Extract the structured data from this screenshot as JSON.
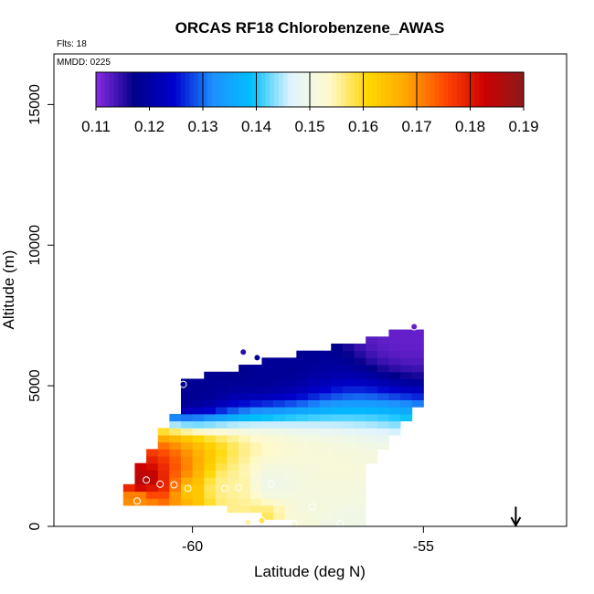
{
  "chart_data": {
    "type": "heatmap",
    "title": "ORCAS RF18 Chlorobenzene_AWAS",
    "annotations": {
      "flights": "Flts: 18",
      "date": "MMDD: 0225"
    },
    "xlabel": "Latitude (deg N)",
    "ylabel": "Altitude (m)",
    "xlim": [
      -63.0,
      -51.9
    ],
    "ylim": [
      0,
      16800
    ],
    "xticks": [
      -60,
      -55
    ],
    "xtick_labels": [
      "-60",
      "-55"
    ],
    "yticks": [
      0,
      5000,
      10000,
      15000
    ],
    "ytick_labels": [
      "0",
      "5000",
      "10000",
      "15000"
    ],
    "colorbar": {
      "ticks": [
        0.11,
        0.12,
        0.13,
        0.14,
        0.15,
        0.16,
        0.17,
        0.18,
        0.19
      ],
      "tick_labels": [
        "0.11",
        "0.12",
        "0.13",
        "0.14",
        "0.15",
        "0.16",
        "0.17",
        "0.18",
        "0.19"
      ],
      "colors": [
        "#8a2be2",
        "#00008b",
        "#0000cd",
        "#1e90ff",
        "#00bfff",
        "#e0f4ff",
        "#fffacd",
        "#ffd700",
        "#ffa500",
        "#ff4500",
        "#cc0000",
        "#8b1a1a"
      ]
    },
    "samples": [
      {
        "lat": -61.0,
        "alt": 1650,
        "value": 0.185
      },
      {
        "lat": -60.7,
        "alt": 1500,
        "value": 0.18
      },
      {
        "lat": -60.4,
        "alt": 1480,
        "value": 0.172
      },
      {
        "lat": -60.1,
        "alt": 1350,
        "value": 0.163
      },
      {
        "lat": -59.3,
        "alt": 1350,
        "value": 0.156
      },
      {
        "lat": -59.0,
        "alt": 1380,
        "value": 0.155
      },
      {
        "lat": -61.2,
        "alt": 900,
        "value": 0.17
      },
      {
        "lat": -58.3,
        "alt": 1500,
        "value": 0.15
      },
      {
        "lat": -57.4,
        "alt": 700,
        "value": 0.151
      },
      {
        "lat": -58.8,
        "alt": 150,
        "value": 0.155
      },
      {
        "lat": -58.5,
        "alt": 200,
        "value": 0.158
      },
      {
        "lat": -57.8,
        "alt": 80,
        "value": 0.152
      },
      {
        "lat": -56.8,
        "alt": 100,
        "value": 0.15
      },
      {
        "lat": -60.2,
        "alt": 5050,
        "value": 0.118
      },
      {
        "lat": -58.9,
        "alt": 6200,
        "value": 0.115
      },
      {
        "lat": -58.6,
        "alt": 6000,
        "value": 0.119
      },
      {
        "lat": -55.2,
        "alt": 7100,
        "value": 0.112
      }
    ],
    "arrow": {
      "lat": -53.0,
      "alt_top": 700,
      "alt_bottom": 0
    }
  }
}
